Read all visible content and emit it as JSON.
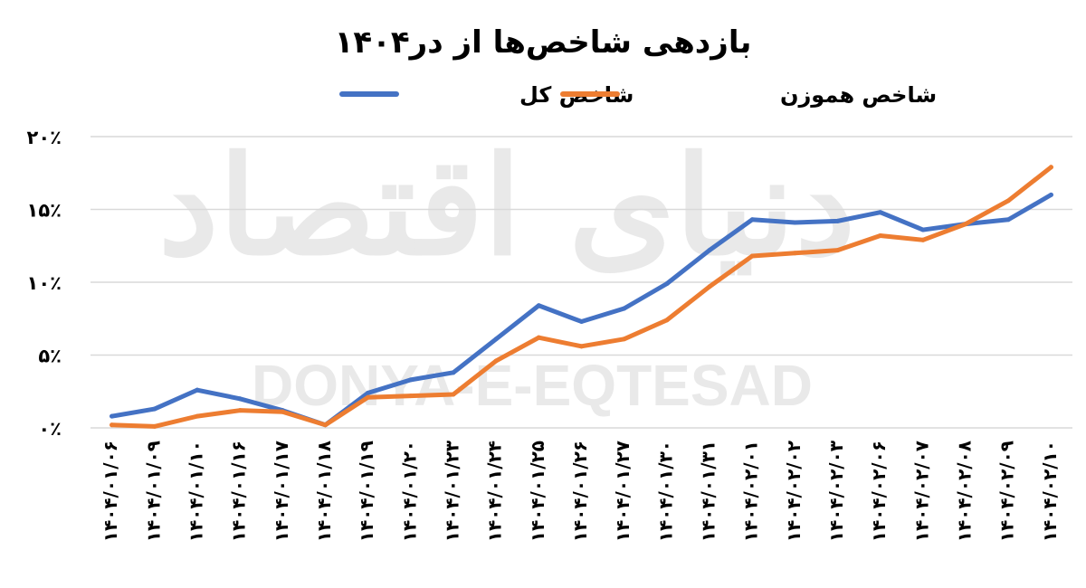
{
  "chart_data": {
    "type": "line",
    "title": "بازدهی شاخص‌ها از در۱۴۰۴",
    "xlabel": "",
    "ylabel": "",
    "ylim": [
      0,
      20
    ],
    "y_ticks": [
      0,
      5,
      10,
      15,
      20
    ],
    "y_tick_labels": [
      "۰٪",
      "۵٪",
      "۱۰٪",
      "۱۵٪",
      "۲۰٪"
    ],
    "grid": true,
    "legend_position": "top",
    "categories": [
      "۱۴۰۴/۰۱/۰۶",
      "۱۴۰۴/۰۱/۰۹",
      "۱۴۰۴/۰۱/۱۰",
      "۱۴۰۴/۰۱/۱۶",
      "۱۴۰۴/۰۱/۱۷",
      "۱۴۰۴/۰۱/۱۸",
      "۱۴۰۴/۰۱/۱۹",
      "۱۴۰۴/۰۱/۲۰",
      "۱۴۰۴/۰۱/۲۳",
      "۱۴۰۴/۰۱/۲۴",
      "۱۴۰۴/۰۱/۲۵",
      "۱۴۰۴/۰۱/۲۶",
      "۱۴۰۴/۰۱/۲۷",
      "۱۴۰۴/۰۱/۳۰",
      "۱۴۰۴/۰۱/۳۱",
      "۱۴۰۴/۰۲/۰۱",
      "۱۴۰۴/۰۲/۰۲",
      "۱۴۰۴/۰۲/۰۳",
      "۱۴۰۴/۰۲/۰۶",
      "۱۴۰۴/۰۲/۰۷",
      "۱۴۰۴/۰۲/۰۸",
      "۱۴۰۴/۰۲/۰۹",
      "۱۴۰۴/۰۲/۱۰"
    ],
    "series": [
      {
        "name": "شاخص کل",
        "color": "#4472C4",
        "values": [
          0.8,
          1.3,
          2.6,
          2.0,
          1.2,
          0.2,
          2.4,
          3.3,
          3.8,
          6.1,
          8.4,
          7.3,
          8.2,
          9.9,
          12.2,
          14.3,
          14.1,
          14.2,
          14.8,
          13.6,
          14.0,
          14.3,
          16.0
        ]
      },
      {
        "name": "شاخص هموزن",
        "color": "#ED7D31",
        "values": [
          0.2,
          0.1,
          0.8,
          1.2,
          1.1,
          0.2,
          2.1,
          2.2,
          2.3,
          4.6,
          6.2,
          5.6,
          6.1,
          7.4,
          9.7,
          11.8,
          12.0,
          12.2,
          13.2,
          12.9,
          14.0,
          15.6,
          17.9
        ]
      }
    ]
  },
  "watermark": {
    "logo_text": "دنیای اقتصاد",
    "latin_text": "DONYA-E-EQTESAD"
  }
}
